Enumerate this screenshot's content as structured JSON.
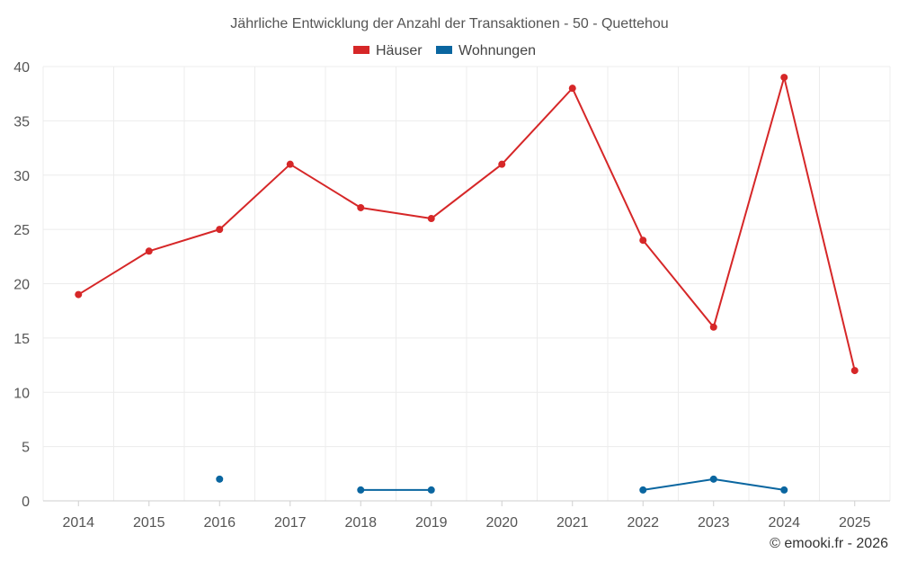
{
  "chart_data": {
    "type": "line",
    "title": "Jährliche Entwicklung der Anzahl der Transaktionen - 50 - Quettehou",
    "categories": [
      "2014",
      "2015",
      "2016",
      "2017",
      "2018",
      "2019",
      "2020",
      "2021",
      "2022",
      "2023",
      "2024",
      "2025"
    ],
    "series": [
      {
        "name": "Häuser",
        "color": "#d62728",
        "values": [
          19,
          23,
          25,
          31,
          27,
          26,
          31,
          38,
          24,
          16,
          39,
          12
        ]
      },
      {
        "name": "Wohnungen",
        "color": "#0a66a0",
        "values": [
          null,
          null,
          2,
          null,
          1,
          1,
          null,
          null,
          1,
          2,
          1,
          null
        ]
      }
    ],
    "ylim": [
      0,
      40
    ],
    "yticks": [
      "0",
      "5",
      "10",
      "15",
      "20",
      "25",
      "30",
      "35",
      "40"
    ],
    "grid": true,
    "legend": "top-center",
    "xlabel": "",
    "ylabel": ""
  },
  "credit": "© emooki.fr - 2026"
}
